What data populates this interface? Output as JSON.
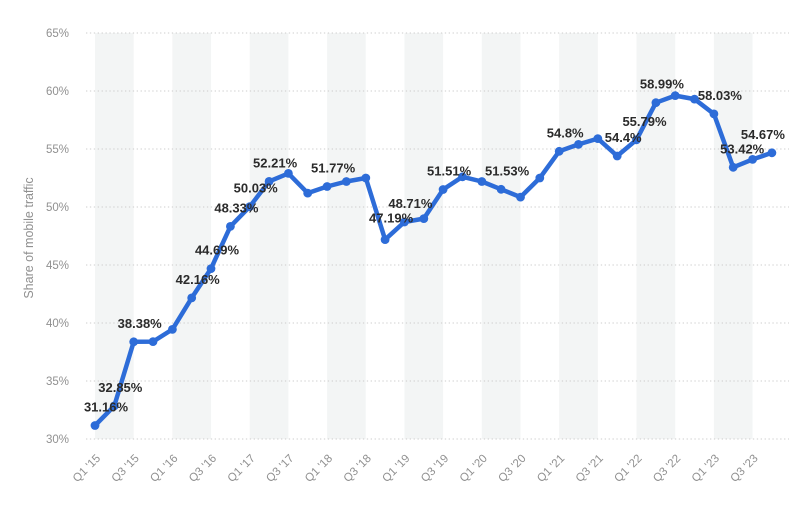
{
  "chart_data": {
    "type": "line",
    "title": "",
    "ylabel": "Share of mobile traffic",
    "xlabel": "",
    "ylim": [
      30,
      65
    ],
    "ytick_step": 5,
    "ytick_labels": [
      "30%",
      "35%",
      "40%",
      "45%",
      "50%",
      "55%",
      "60%",
      "65%"
    ],
    "x_tick_labels": [
      "Q1 '15",
      "Q3 '15",
      "Q1 '16",
      "Q3 '16",
      "Q1 '17",
      "Q3 '17",
      "Q1 '18",
      "Q3 '18",
      "Q1 '19",
      "Q3 '19",
      "Q1 '20",
      "Q3 '20",
      "Q1 '21",
      "Q3 '21",
      "Q1 '22",
      "Q3 '22",
      "Q1 '23",
      "Q3 '23"
    ],
    "grid": "horizontal-dotted",
    "legend_position": "none",
    "line_color": "#2d6cd8",
    "point_color": "#2d6cd8",
    "band_color": "#f3f5f5",
    "grid_color": "#cccccc",
    "axis_text_color": "#909090",
    "data_label_color": "#2b2b2b",
    "points": [
      {
        "quarter": "Q1 '15",
        "value": 31.16,
        "label": "31.16%"
      },
      {
        "quarter": "Q2 '15",
        "value": 32.85,
        "label": "32.85%"
      },
      {
        "quarter": "Q3 '15",
        "value": 38.38,
        "label": "38.38%"
      },
      {
        "quarter": "Q4 '15",
        "value": 38.4,
        "label": null
      },
      {
        "quarter": "Q1 '16",
        "value": 39.45,
        "label": null
      },
      {
        "quarter": "Q2 '16",
        "value": 42.16,
        "label": "42.16%"
      },
      {
        "quarter": "Q3 '16",
        "value": 44.69,
        "label": "44.69%"
      },
      {
        "quarter": "Q4 '16",
        "value": 48.33,
        "label": "48.33%"
      },
      {
        "quarter": "Q1 '17",
        "value": 50.03,
        "label": "50.03%"
      },
      {
        "quarter": "Q2 '17",
        "value": 52.21,
        "label": "52.21%"
      },
      {
        "quarter": "Q3 '17",
        "value": 52.9,
        "label": null
      },
      {
        "quarter": "Q4 '17",
        "value": 51.2,
        "label": null
      },
      {
        "quarter": "Q1 '18",
        "value": 51.77,
        "label": "51.77%"
      },
      {
        "quarter": "Q2 '18",
        "value": 52.2,
        "label": null
      },
      {
        "quarter": "Q3 '18",
        "value": 52.5,
        "label": null
      },
      {
        "quarter": "Q4 '18",
        "value": 47.19,
        "label": "47.19%"
      },
      {
        "quarter": "Q1 '19",
        "value": 48.71,
        "label": "48.71%"
      },
      {
        "quarter": "Q2 '19",
        "value": 49.0,
        "label": null
      },
      {
        "quarter": "Q3 '19",
        "value": 51.51,
        "label": "51.51%"
      },
      {
        "quarter": "Q4 '19",
        "value": 52.6,
        "label": null
      },
      {
        "quarter": "Q1 '20",
        "value": 52.2,
        "label": null
      },
      {
        "quarter": "Q2 '20",
        "value": 51.53,
        "label": "51.53%"
      },
      {
        "quarter": "Q3 '20",
        "value": 50.85,
        "label": null
      },
      {
        "quarter": "Q4 '20",
        "value": 52.5,
        "label": null
      },
      {
        "quarter": "Q1 '21",
        "value": 54.8,
        "label": "54.8%"
      },
      {
        "quarter": "Q2 '21",
        "value": 55.4,
        "label": null
      },
      {
        "quarter": "Q3 '21",
        "value": 55.9,
        "label": null
      },
      {
        "quarter": "Q4 '21",
        "value": 54.4,
        "label": "54.4%"
      },
      {
        "quarter": "Q1 '22",
        "value": 55.79,
        "label": "55.79%"
      },
      {
        "quarter": "Q2 '22",
        "value": 58.99,
        "label": "58.99%"
      },
      {
        "quarter": "Q3 '22",
        "value": 59.6,
        "label": null
      },
      {
        "quarter": "Q4 '22",
        "value": 59.3,
        "label": null
      },
      {
        "quarter": "Q1 '23",
        "value": 58.03,
        "label": "58.03%"
      },
      {
        "quarter": "Q2 '23",
        "value": 53.42,
        "label": "53.42%"
      },
      {
        "quarter": "Q3 '23",
        "value": 54.1,
        "label": null
      },
      {
        "quarter": "Q4 '23",
        "value": 54.67,
        "label": "54.67%"
      }
    ]
  }
}
